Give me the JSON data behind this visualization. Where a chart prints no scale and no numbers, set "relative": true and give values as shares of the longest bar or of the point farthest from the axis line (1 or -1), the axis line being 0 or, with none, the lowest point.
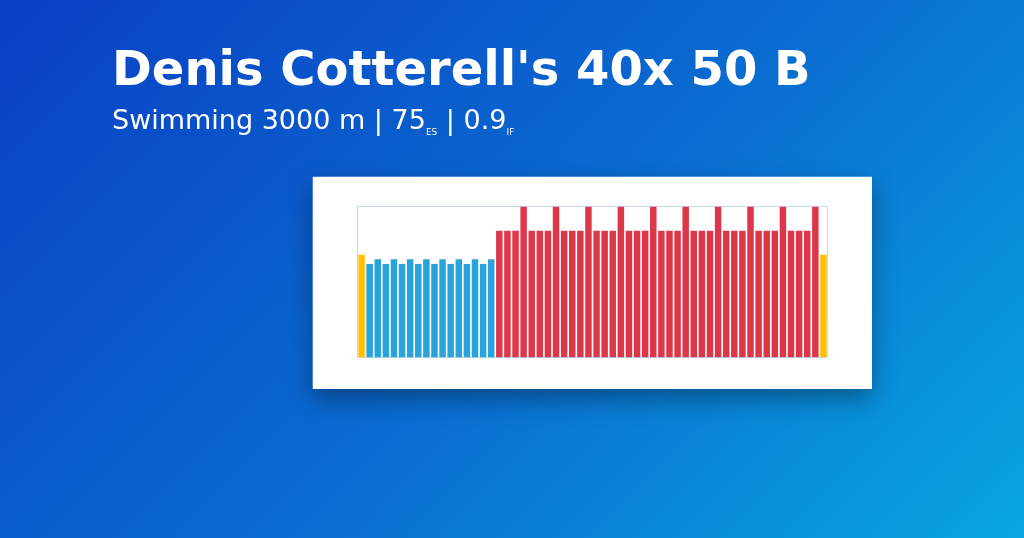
{
  "chart_data": {
    "type": "bar",
    "relative": true,
    "title": "Denis Cotterell's 40x 50 B",
    "subtitle": "Swimming 3000 m | 75$_{ES}$ | 0.9$_{IF}$",
    "categories": [
      null,
      null,
      null,
      null,
      null,
      null,
      null,
      null,
      null,
      null,
      null,
      null,
      null,
      null,
      null,
      null,
      null,
      null,
      null,
      null,
      null,
      null,
      null,
      null,
      null,
      null,
      null,
      null,
      null,
      null,
      null,
      null,
      null,
      null,
      null,
      null,
      null,
      null,
      null,
      null,
      null,
      null,
      null,
      null,
      null,
      null,
      null,
      null,
      null,
      null,
      null,
      null,
      null,
      null,
      null,
      null,
      null,
      null
    ],
    "values": [
      0.68,
      0.62,
      0.65,
      0.62,
      0.65,
      0.62,
      0.65,
      0.62,
      0.65,
      0.62,
      0.65,
      0.62,
      0.65,
      0.62,
      0.65,
      0.62,
      0.65,
      0.84,
      0.84,
      0.84,
      1,
      0.84,
      0.84,
      0.84,
      1,
      0.84,
      0.84,
      0.84,
      1,
      0.84,
      0.84,
      0.84,
      1,
      0.84,
      0.84,
      0.84,
      1,
      0.84,
      0.84,
      0.84,
      1,
      0.84,
      0.84,
      0.84,
      1,
      0.84,
      0.84,
      0.84,
      1,
      0.84,
      0.84,
      0.84,
      1,
      0.84,
      0.84,
      0.84,
      1,
      0.68
    ],
    "colors": [
      "#ffc107",
      "#29a3dc",
      "#29a3dc",
      "#29a3dc",
      "#29a3dc",
      "#29a3dc",
      "#29a3dc",
      "#29a3dc",
      "#29a3dc",
      "#29a3dc",
      "#29a3dc",
      "#29a3dc",
      "#29a3dc",
      "#29a3dc",
      "#29a3dc",
      "#29a3dc",
      "#29a3dc",
      "#de3649",
      "#de3649",
      "#de3649",
      "#de3649",
      "#de3649",
      "#de3649",
      "#de3649",
      "#de3649",
      "#de3649",
      "#de3649",
      "#de3649",
      "#de3649",
      "#de3649",
      "#de3649",
      "#de3649",
      "#de3649",
      "#de3649",
      "#de3649",
      "#de3649",
      "#de3649",
      "#de3649",
      "#de3649",
      "#de3649",
      "#de3649",
      "#de3649",
      "#de3649",
      "#de3649",
      "#de3649",
      "#de3649",
      "#de3649",
      "#de3649",
      "#de3649",
      "#de3649",
      "#de3649",
      "#de3649",
      "#de3649",
      "#de3649",
      "#de3649",
      "#de3649",
      "#de3649",
      "#ffc107"
    ]
  }
}
